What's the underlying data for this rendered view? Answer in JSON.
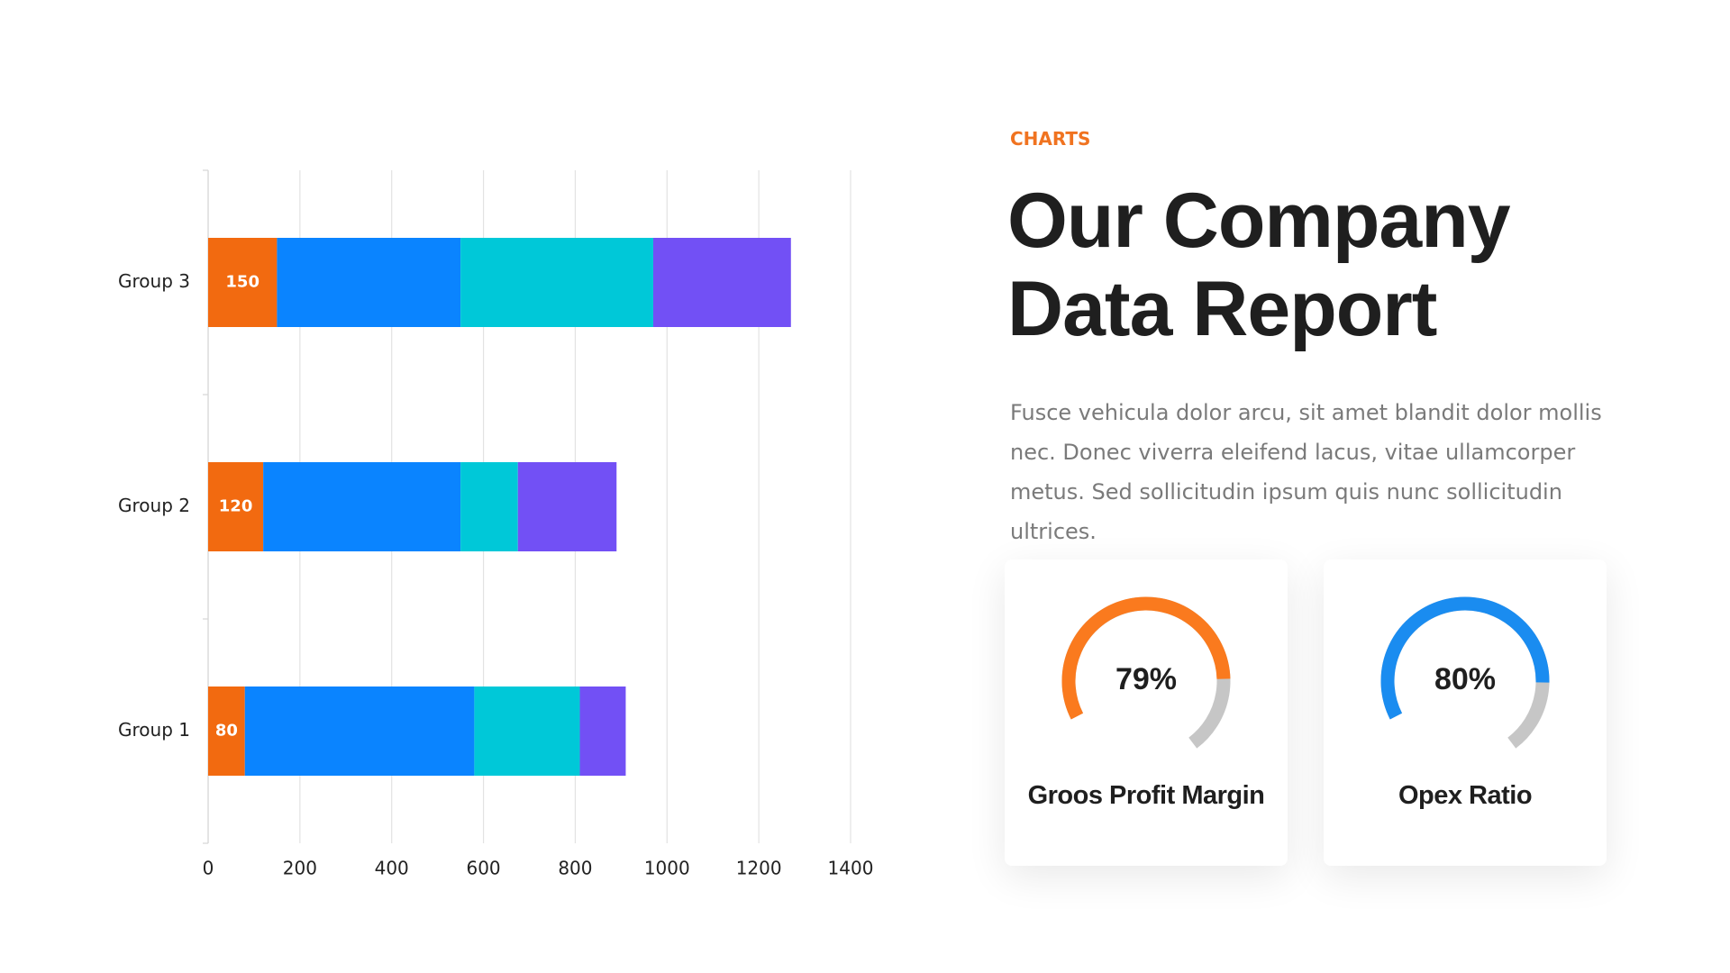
{
  "chart_data": [
    {
      "type": "bar",
      "orientation": "horizontal",
      "stacked": true,
      "categories": [
        "Group 1",
        "Group 2",
        "Group 3"
      ],
      "series": [
        {
          "color": "#f26a10",
          "values": [
            80,
            120,
            150
          ],
          "show_labels": true
        },
        {
          "color": "#0a84ff",
          "values": [
            500,
            430,
            400
          ]
        },
        {
          "color": "#00c8d8",
          "values": [
            230,
            125,
            420
          ]
        },
        {
          "color": "#7250f5",
          "values": [
            100,
            215,
            300
          ]
        }
      ],
      "xlim": [
        0,
        1400
      ],
      "xticks": [
        0,
        200,
        400,
        600,
        800,
        1000,
        1200,
        1400
      ],
      "grid": true
    },
    {
      "type": "gauge",
      "title": "Groos Profit Margin",
      "values": [
        79
      ],
      "value_labels": [
        "79%"
      ],
      "ylim": [
        0,
        100
      ],
      "color": "#fa7a1e",
      "track_color": "#c6c6c6"
    },
    {
      "type": "gauge",
      "title": "Opex Ratio",
      "values": [
        80
      ],
      "value_labels": [
        "80%"
      ],
      "ylim": [
        0,
        100
      ],
      "color": "#1a8cf0",
      "track_color": "#c6c6c6"
    }
  ],
  "header": {
    "eyebrow": "CHARTS",
    "title": "Our Company Data Report",
    "body": "Fusce vehicula dolor arcu, sit amet blandit dolor mollis nec. Donec viverra eleifend lacus, vitae ullamcorper metus. Sed sollicitudin ipsum quis nunc sollicitudin ultrices."
  }
}
